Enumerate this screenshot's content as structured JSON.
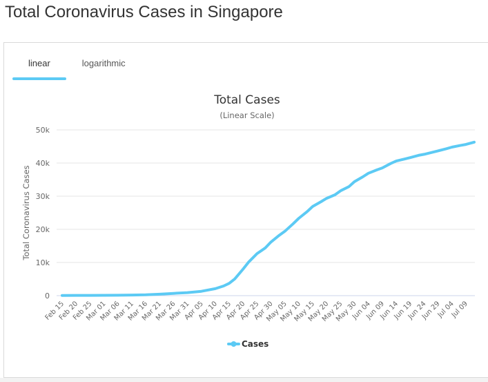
{
  "page": {
    "title": "Total Coronavirus Cases in Singapore"
  },
  "tabs": [
    {
      "label": "linear",
      "active": true
    },
    {
      "label": "logarithmic",
      "active": false
    }
  ],
  "colors": {
    "accent": "#5ccaf4",
    "line": "#5ccaf4",
    "grid": "#e6e6e6"
  },
  "chart_data": {
    "type": "line",
    "title": "Total Cases",
    "subtitle": "(Linear Scale)",
    "xlabel": "",
    "ylabel": "Total Coronavirus Cases",
    "ylim": [
      0,
      50000
    ],
    "yticks": [
      0,
      10000,
      20000,
      30000,
      40000,
      50000
    ],
    "ytick_labels": [
      "0",
      "10k",
      "20k",
      "30k",
      "40k",
      "50k"
    ],
    "xtick_labels": [
      "Feb 15",
      "Feb 20",
      "Feb 25",
      "Mar 01",
      "Mar 06",
      "Mar 11",
      "Mar 16",
      "Mar 21",
      "Mar 26",
      "Mar 31",
      "Apr 05",
      "Apr 10",
      "Apr 15",
      "Apr 20",
      "Apr 25",
      "Apr 30",
      "May 05",
      "May 10",
      "May 15",
      "May 20",
      "May 25",
      "May 30",
      "Jun 04",
      "Jun 09",
      "Jun 14",
      "Jun 19",
      "Jun 24",
      "Jun 29",
      "Jul 04",
      "Jul 09"
    ],
    "grid": true,
    "legend_position": "bottom-center",
    "series": [
      {
        "name": "Cases",
        "x": [
          "Feb 15",
          "Feb 20",
          "Feb 25",
          "Mar 01",
          "Mar 06",
          "Mar 11",
          "Mar 16",
          "Mar 21",
          "Mar 26",
          "Mar 31",
          "Apr 05",
          "Apr 10",
          "Apr 13",
          "Apr 15",
          "Apr 17",
          "Apr 20",
          "Apr 22",
          "Apr 25",
          "Apr 28",
          "Apr 30",
          "May 03",
          "May 05",
          "May 08",
          "May 10",
          "May 13",
          "May 15",
          "May 18",
          "May 20",
          "May 23",
          "May 25",
          "May 28",
          "May 30",
          "Jun 02",
          "Jun 04",
          "Jun 07",
          "Jun 09",
          "Jun 12",
          "Jun 14",
          "Jun 17",
          "Jun 19",
          "Jun 22",
          "Jun 24",
          "Jun 27",
          "Jun 29",
          "Jul 02",
          "Jul 04",
          "Jul 07",
          "Jul 09",
          "Jul 12"
        ],
        "values": [
          72,
          84,
          91,
          106,
          117,
          178,
          243,
          432,
          683,
          926,
          1309,
          2108,
          2918,
          3699,
          5050,
          8014,
          10141,
          12693,
          14423,
          16169,
          18205,
          19410,
          21707,
          23336,
          25346,
          26891,
          28343,
          29364,
          30426,
          31616,
          32876,
          34366,
          35836,
          36922,
          37910,
          38514,
          39850,
          40604,
          41216,
          41615,
          42313,
          42623,
          43246,
          43661,
          44310,
          44800,
          45298,
          45613,
          46283
        ]
      }
    ]
  }
}
